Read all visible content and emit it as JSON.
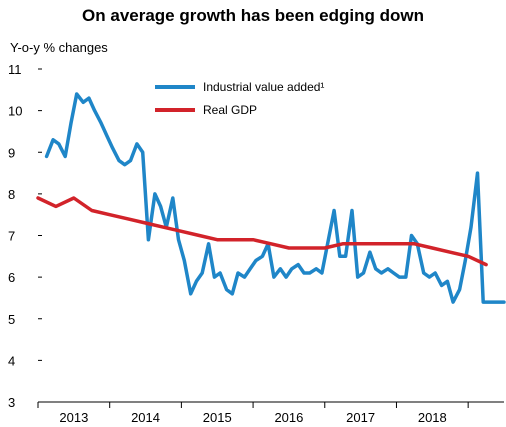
{
  "chart_data": {
    "type": "line",
    "title": "On average growth has been edging down",
    "ylabel": "Y-o-y % changes",
    "ylim": [
      3,
      11
    ],
    "yticks": [
      3,
      4,
      5,
      6,
      7,
      8,
      9,
      10,
      11
    ],
    "xlim": [
      2012.5,
      2019.0
    ],
    "xtick_labels": [
      "2013",
      "2014",
      "2015",
      "2016",
      "2017",
      "2018"
    ],
    "xtick_positions": [
      2013.0,
      2014.0,
      2015.0,
      2016.0,
      2017.0,
      2018.0
    ],
    "grid": false,
    "legend_placement": "top-center",
    "series": [
      {
        "name": "Industrial value added¹",
        "color": "#1f86c8",
        "x": [
          2012.62,
          2012.71,
          2012.79,
          2012.88,
          2012.96,
          2013.04,
          2013.13,
          2013.21,
          2013.29,
          2013.38,
          2013.46,
          2013.54,
          2013.63,
          2013.71,
          2013.79,
          2013.88,
          2013.96,
          2014.04,
          2014.13,
          2014.21,
          2014.29,
          2014.38,
          2014.46,
          2014.54,
          2014.63,
          2014.71,
          2014.79,
          2014.88,
          2014.96,
          2015.04,
          2015.13,
          2015.21,
          2015.29,
          2015.38,
          2015.46,
          2015.54,
          2015.63,
          2015.71,
          2015.79,
          2015.88,
          2015.96,
          2016.04,
          2016.13,
          2016.21,
          2016.29,
          2016.38,
          2016.46,
          2016.54,
          2016.63,
          2016.71,
          2016.79,
          2016.88,
          2016.96,
          2017.04,
          2017.13,
          2017.21,
          2017.29,
          2017.38,
          2017.46,
          2017.54,
          2017.63,
          2017.71,
          2017.79,
          2017.88,
          2017.96,
          2018.04,
          2018.13,
          2018.21,
          2018.29,
          2018.38,
          2018.46,
          2018.54,
          2018.63,
          2018.71,
          2018.79,
          2018.88,
          2018.96,
          2019.0
        ],
        "values": [
          8.9,
          9.3,
          9.2,
          8.9,
          9.7,
          10.4,
          10.2,
          10.3,
          10.0,
          9.7,
          9.4,
          9.1,
          8.8,
          8.7,
          8.8,
          9.2,
          9.0,
          6.9,
          8.0,
          7.7,
          7.2,
          7.9,
          6.9,
          6.4,
          5.6,
          5.9,
          6.1,
          6.8,
          6.0,
          6.1,
          5.7,
          5.6,
          6.1,
          6.0,
          6.2,
          6.4,
          6.5,
          6.8,
          6.0,
          6.2,
          6.0,
          6.2,
          6.3,
          6.1,
          6.1,
          6.2,
          6.1,
          6.8,
          7.6,
          6.5,
          6.5,
          7.6,
          6.0,
          6.1,
          6.6,
          6.2,
          6.1,
          6.2,
          6.1,
          6.0,
          6.0,
          7.0,
          6.8,
          6.1,
          6.0,
          6.1,
          5.8,
          5.9,
          5.4,
          5.7,
          6.4,
          7.2,
          8.5,
          5.4,
          5.4,
          5.4,
          5.4,
          5.4
        ]
      },
      {
        "name": "Real GDP",
        "color": "#d2232a",
        "x": [
          2012.5,
          2012.75,
          2013.0,
          2013.25,
          2013.5,
          2013.75,
          2014.0,
          2014.25,
          2014.5,
          2014.75,
          2015.0,
          2015.25,
          2015.5,
          2015.75,
          2016.0,
          2016.25,
          2016.5,
          2016.75,
          2017.0,
          2017.25,
          2017.5,
          2017.75,
          2018.0,
          2018.25,
          2018.5,
          2018.75
        ],
        "values": [
          7.9,
          7.7,
          7.9,
          7.6,
          7.5,
          7.4,
          7.3,
          7.2,
          7.1,
          7.0,
          6.9,
          6.9,
          6.9,
          6.8,
          6.7,
          6.7,
          6.7,
          6.8,
          6.8,
          6.8,
          6.8,
          6.8,
          6.7,
          6.6,
          6.5,
          6.3
        ]
      }
    ]
  }
}
